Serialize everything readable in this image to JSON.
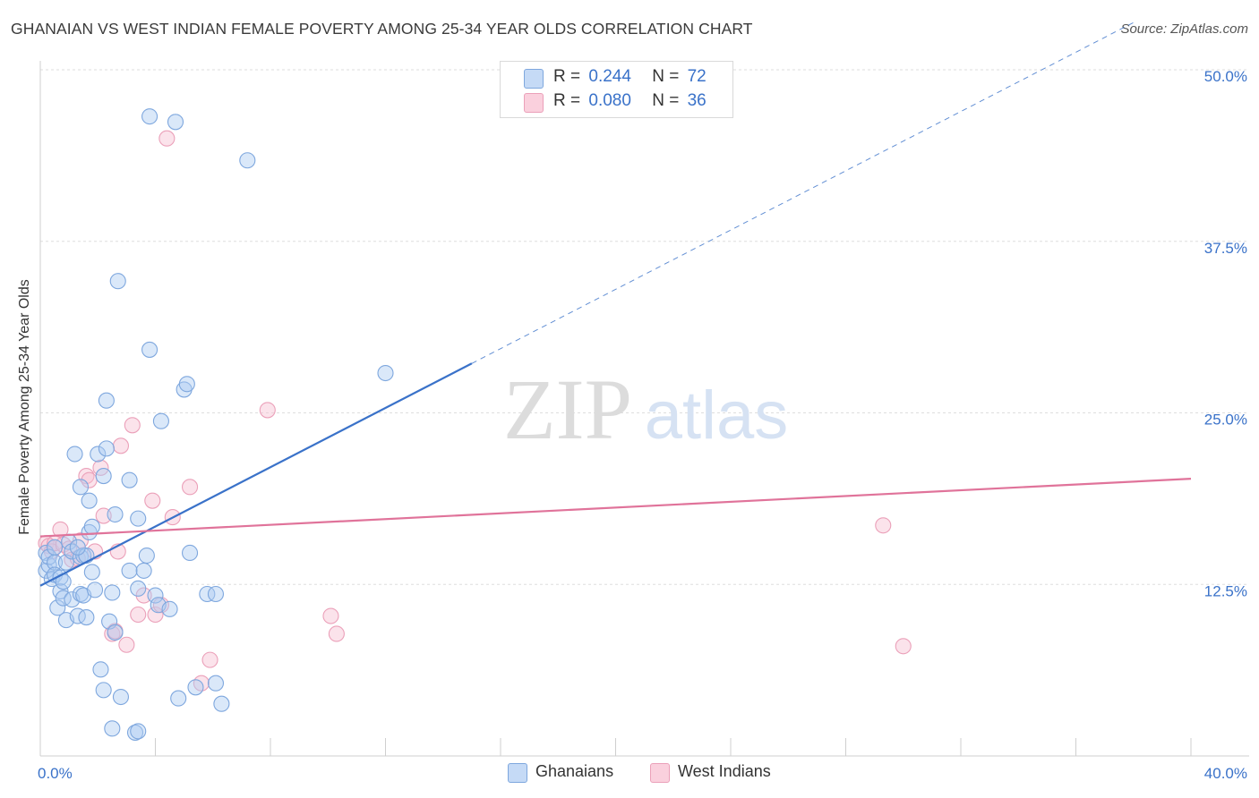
{
  "title": "GHANAIAN VS WEST INDIAN FEMALE POVERTY AMONG 25-34 YEAR OLDS CORRELATION CHART",
  "source": "Source: ZipAtlas.com",
  "watermark": {
    "zip": "ZIP",
    "atlas": "atlas"
  },
  "colors": {
    "blue": "#3a72c9",
    "pink": "#e0739a",
    "blue_fill": "#aecbf2",
    "pink_fill": "#f7c2d2"
  },
  "legend": {
    "r_label": "R =",
    "n_label": "N =",
    "rows": [
      {
        "series": "Ghanaians",
        "r": "0.244",
        "n": "72"
      },
      {
        "series": "West Indians",
        "r": "0.080",
        "n": "36"
      }
    ]
  },
  "chart_data": {
    "type": "scatter",
    "title": "GHANAIAN VS WEST INDIAN FEMALE POVERTY AMONG 25-34 YEAR OLDS CORRELATION CHART",
    "xlabel": "",
    "ylabel": "Female Poverty Among 25-34 Year Olds",
    "xlim": [
      0,
      40
    ],
    "ylim": [
      0,
      50
    ],
    "x_tick_labels": [
      "0.0%",
      "40.0%"
    ],
    "y_ticks": [
      12.5,
      25.0,
      37.5,
      50.0
    ],
    "y_tick_labels": [
      "12.5%",
      "25.0%",
      "37.5%",
      "50.0%"
    ],
    "grid": true,
    "series": [
      {
        "name": "Ghanaians",
        "color": "#3a72c9",
        "trend": {
          "x0": 0,
          "y0": 12.4,
          "x1": 15.0,
          "y1": 28.6,
          "dashed_to_x": 38.0
        },
        "points": [
          [
            0.2,
            13.5
          ],
          [
            0.2,
            14.8
          ],
          [
            0.3,
            13.9
          ],
          [
            0.3,
            14.5
          ],
          [
            0.4,
            12.9
          ],
          [
            0.5,
            14.1
          ],
          [
            0.5,
            13.2
          ],
          [
            0.5,
            15.2
          ],
          [
            0.6,
            10.8
          ],
          [
            0.7,
            12.0
          ],
          [
            0.7,
            13.0
          ],
          [
            0.8,
            11.5
          ],
          [
            0.8,
            12.7
          ],
          [
            0.9,
            9.9
          ],
          [
            0.9,
            14.1
          ],
          [
            1.0,
            15.6
          ],
          [
            1.1,
            11.4
          ],
          [
            1.1,
            14.9
          ],
          [
            1.2,
            22.0
          ],
          [
            1.3,
            10.2
          ],
          [
            1.4,
            11.8
          ],
          [
            1.4,
            14.5
          ],
          [
            1.4,
            19.6
          ],
          [
            1.5,
            11.7
          ],
          [
            1.5,
            14.6
          ],
          [
            1.6,
            10.1
          ],
          [
            1.6,
            14.6
          ],
          [
            1.7,
            16.3
          ],
          [
            1.7,
            18.6
          ],
          [
            1.8,
            13.4
          ],
          [
            1.8,
            16.7
          ],
          [
            1.9,
            12.1
          ],
          [
            2.0,
            22.0
          ],
          [
            2.1,
            6.3
          ],
          [
            2.2,
            20.4
          ],
          [
            2.2,
            4.8
          ],
          [
            2.3,
            25.9
          ],
          [
            2.3,
            22.4
          ],
          [
            2.4,
            9.8
          ],
          [
            2.5,
            11.9
          ],
          [
            2.5,
            2.0
          ],
          [
            2.6,
            9.0
          ],
          [
            2.6,
            17.6
          ],
          [
            2.7,
            34.6
          ],
          [
            2.8,
            4.3
          ],
          [
            3.1,
            13.5
          ],
          [
            3.1,
            20.1
          ],
          [
            3.3,
            1.7
          ],
          [
            3.4,
            1.8
          ],
          [
            3.4,
            17.3
          ],
          [
            3.4,
            12.2
          ],
          [
            3.6,
            13.5
          ],
          [
            3.7,
            14.6
          ],
          [
            3.8,
            29.6
          ],
          [
            4.0,
            11.7
          ],
          [
            4.1,
            11.0
          ],
          [
            4.2,
            24.4
          ],
          [
            4.5,
            10.7
          ],
          [
            3.8,
            46.6
          ],
          [
            4.7,
            46.2
          ],
          [
            4.8,
            4.2
          ],
          [
            5.0,
            26.7
          ],
          [
            5.1,
            27.1
          ],
          [
            5.2,
            14.8
          ],
          [
            5.4,
            5.0
          ],
          [
            5.8,
            11.8
          ],
          [
            6.1,
            11.8
          ],
          [
            6.1,
            5.3
          ],
          [
            6.3,
            3.8
          ],
          [
            7.2,
            43.4
          ],
          [
            12.0,
            27.9
          ],
          [
            1.3,
            15.2
          ]
        ]
      },
      {
        "name": "West Indians",
        "color": "#e0739a",
        "trend": {
          "x0": 0,
          "y0": 16.0,
          "x1": 40.0,
          "y1": 20.2
        },
        "points": [
          [
            0.2,
            15.5
          ],
          [
            0.3,
            15.3
          ],
          [
            0.4,
            14.9
          ],
          [
            0.5,
            15.5
          ],
          [
            0.7,
            16.5
          ],
          [
            0.8,
            15.4
          ],
          [
            1.0,
            15.1
          ],
          [
            1.1,
            14.3
          ],
          [
            1.3,
            14.4
          ],
          [
            1.4,
            15.7
          ],
          [
            1.6,
            20.4
          ],
          [
            1.7,
            20.1
          ],
          [
            1.9,
            14.9
          ],
          [
            2.1,
            21.0
          ],
          [
            2.2,
            17.5
          ],
          [
            2.5,
            8.9
          ],
          [
            2.6,
            9.1
          ],
          [
            2.7,
            14.9
          ],
          [
            2.8,
            22.6
          ],
          [
            3.0,
            8.1
          ],
          [
            3.2,
            24.1
          ],
          [
            3.4,
            10.3
          ],
          [
            3.6,
            11.7
          ],
          [
            3.9,
            18.6
          ],
          [
            4.0,
            10.3
          ],
          [
            4.2,
            11.0
          ],
          [
            4.4,
            45.0
          ],
          [
            4.6,
            17.4
          ],
          [
            5.2,
            19.6
          ],
          [
            5.6,
            5.3
          ],
          [
            5.9,
            7.0
          ],
          [
            7.9,
            25.2
          ],
          [
            10.1,
            10.2
          ],
          [
            10.3,
            8.9
          ],
          [
            29.3,
            16.8
          ],
          [
            30.0,
            8.0
          ]
        ]
      }
    ]
  }
}
